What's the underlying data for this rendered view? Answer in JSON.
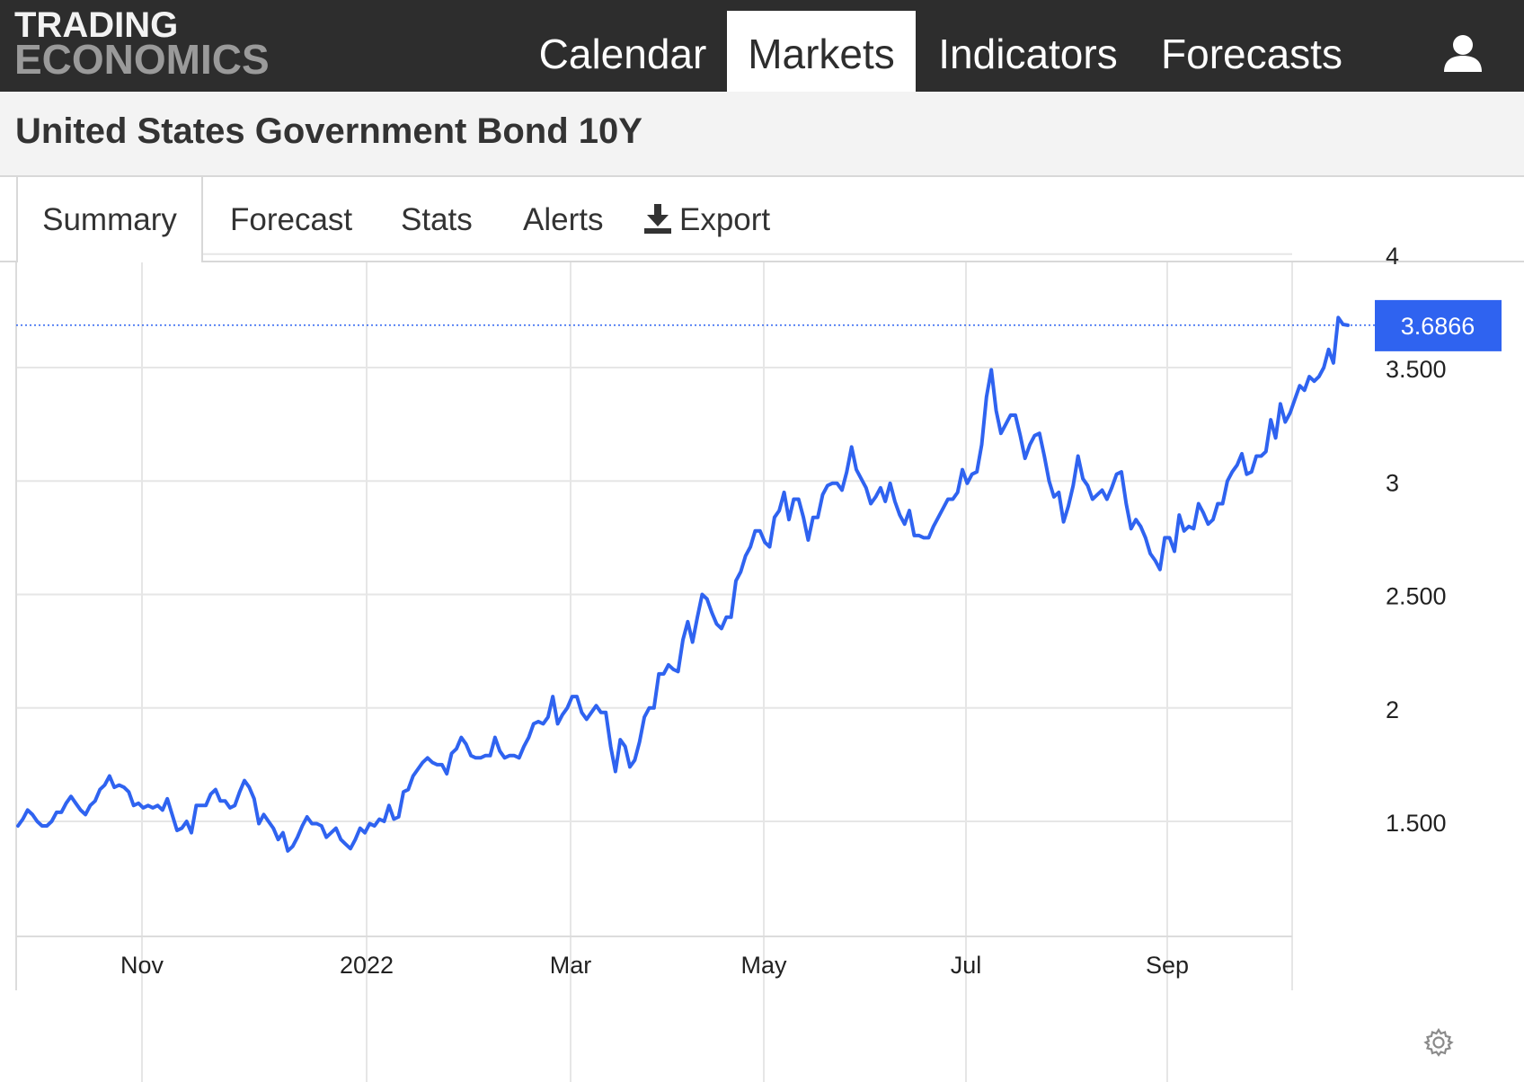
{
  "brand": {
    "line1": "TRADING",
    "line2": "ECONOMICS"
  },
  "nav": {
    "items": [
      {
        "label": "Calendar",
        "active": false
      },
      {
        "label": "Markets",
        "active": true
      },
      {
        "label": "Indicators",
        "active": false
      },
      {
        "label": "Forecasts",
        "active": false
      }
    ],
    "user_icon": "user-icon"
  },
  "page": {
    "title": "United States Government Bond 10Y"
  },
  "tabs": {
    "items": [
      {
        "label": "Summary",
        "active": true
      },
      {
        "label": "Forecast",
        "active": false
      },
      {
        "label": "Stats",
        "active": false
      },
      {
        "label": "Alerts",
        "active": false
      },
      {
        "label": "Export",
        "active": false,
        "icon": "download-icon"
      }
    ]
  },
  "settings_icon": "gear-icon",
  "colors": {
    "line": "#2f63f0",
    "badge": "#2f63f0",
    "topbar": "#2d2d2d",
    "grid": "#e6e6e6"
  },
  "chart_data": {
    "type": "line",
    "title": "",
    "xlabel": "",
    "ylabel": "",
    "x_tick_labels": [
      "Nov",
      "2022",
      "Mar",
      "May",
      "Jul",
      "Sep"
    ],
    "y_tick_labels": [
      "1.500",
      "2",
      "2.500",
      "3",
      "3.500",
      "4"
    ],
    "y_ticks": [
      1.5,
      2,
      2.5,
      3,
      3.5,
      4
    ],
    "ylim": [
      1.0,
      4.0
    ],
    "grid": true,
    "last_value_label": "3.6866",
    "last_value": 3.6866,
    "series": [
      {
        "name": "",
        "values": [
          1.48,
          1.51,
          1.55,
          1.53,
          1.5,
          1.48,
          1.48,
          1.5,
          1.54,
          1.54,
          1.58,
          1.61,
          1.58,
          1.55,
          1.53,
          1.57,
          1.59,
          1.64,
          1.66,
          1.7,
          1.65,
          1.66,
          1.65,
          1.63,
          1.57,
          1.58,
          1.56,
          1.57,
          1.56,
          1.57,
          1.55,
          1.6,
          1.53,
          1.46,
          1.47,
          1.5,
          1.45,
          1.57,
          1.57,
          1.57,
          1.62,
          1.64,
          1.59,
          1.59,
          1.56,
          1.57,
          1.63,
          1.68,
          1.65,
          1.6,
          1.49,
          1.53,
          1.5,
          1.47,
          1.42,
          1.45,
          1.37,
          1.39,
          1.43,
          1.48,
          1.52,
          1.49,
          1.49,
          1.48,
          1.43,
          1.45,
          1.47,
          1.42,
          1.4,
          1.38,
          1.42,
          1.47,
          1.45,
          1.49,
          1.48,
          1.51,
          1.5,
          1.57,
          1.51,
          1.52,
          1.63,
          1.64,
          1.7,
          1.73,
          1.76,
          1.78,
          1.76,
          1.75,
          1.75,
          1.71,
          1.8,
          1.82,
          1.87,
          1.84,
          1.79,
          1.78,
          1.78,
          1.79,
          1.79,
          1.87,
          1.81,
          1.78,
          1.79,
          1.79,
          1.78,
          1.83,
          1.87,
          1.93,
          1.94,
          1.93,
          1.96,
          2.05,
          1.93,
          1.97,
          2.0,
          2.05,
          2.05,
          1.98,
          1.95,
          1.98,
          2.01,
          1.98,
          1.98,
          1.83,
          1.72,
          1.86,
          1.83,
          1.74,
          1.77,
          1.85,
          1.96,
          2.0,
          2.0,
          2.15,
          2.15,
          2.19,
          2.17,
          2.16,
          2.3,
          2.38,
          2.29,
          2.4,
          2.5,
          2.48,
          2.42,
          2.37,
          2.35,
          2.4,
          2.4,
          2.56,
          2.6,
          2.67,
          2.71,
          2.78,
          2.78,
          2.73,
          2.71,
          2.84,
          2.87,
          2.95,
          2.83,
          2.92,
          2.92,
          2.84,
          2.74,
          2.84,
          2.84,
          2.94,
          2.98,
          2.99,
          2.99,
          2.96,
          3.04,
          3.15,
          3.05,
          3.01,
          2.97,
          2.9,
          2.93,
          2.97,
          2.91,
          2.99,
          2.91,
          2.85,
          2.81,
          2.87,
          2.76,
          2.76,
          2.75,
          2.75,
          2.8,
          2.84,
          2.88,
          2.92,
          2.92,
          2.95,
          3.05,
          2.99,
          3.03,
          3.04,
          3.16,
          3.37,
          3.49,
          3.31,
          3.21,
          3.25,
          3.29,
          3.29,
          3.2,
          3.1,
          3.16,
          3.2,
          3.21,
          3.11,
          3.0,
          2.93,
          2.95,
          2.82,
          2.89,
          2.98,
          3.11,
          3.01,
          2.98,
          2.92,
          2.94,
          2.96,
          2.92,
          2.97,
          3.03,
          3.04,
          2.9,
          2.79,
          2.83,
          2.8,
          2.75,
          2.68,
          2.65,
          2.61,
          2.75,
          2.75,
          2.69,
          2.85,
          2.78,
          2.8,
          2.79,
          2.9,
          2.86,
          2.81,
          2.83,
          2.9,
          2.9,
          3.0,
          3.04,
          3.07,
          3.12,
          3.03,
          3.04,
          3.11,
          3.11,
          3.13,
          3.27,
          3.19,
          3.34,
          3.26,
          3.3,
          3.36,
          3.42,
          3.4,
          3.46,
          3.44,
          3.46,
          3.5,
          3.58,
          3.52,
          3.72,
          3.69,
          3.6866
        ]
      }
    ]
  }
}
